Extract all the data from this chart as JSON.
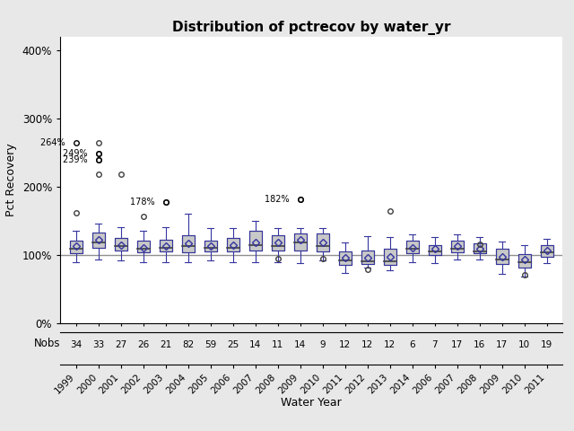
{
  "title": "Distribution of pctrecov by water_yr",
  "xlabel": "Water Year",
  "ylabel": "Pct Recovery",
  "ylabel_nobs": "Nobs",
  "background_color": "#e8e8e8",
  "plot_bg_color": "#ffffff",
  "years": [
    "1999",
    "2000",
    "2001",
    "2002",
    "2003",
    "2004",
    "2005",
    "2006",
    "2007",
    "2008",
    "2009",
    "2010",
    "2011",
    "2012",
    "2013",
    "2014",
    "2006",
    "2007",
    "2008",
    "2009",
    "2010",
    "2011"
  ],
  "nobs": [
    34,
    33,
    27,
    26,
    21,
    82,
    59,
    25,
    14,
    11,
    14,
    9,
    12,
    12,
    12,
    6,
    7,
    17,
    16,
    17,
    10,
    19
  ],
  "box_data": {
    "whislo": [
      90,
      94,
      92,
      90,
      90,
      90,
      92,
      90,
      90,
      90,
      88,
      92,
      74,
      82,
      78,
      90,
      88,
      94,
      93,
      73,
      68,
      88
    ],
    "q1": [
      103,
      110,
      107,
      104,
      105,
      104,
      105,
      105,
      106,
      106,
      107,
      105,
      86,
      87,
      86,
      102,
      100,
      104,
      102,
      87,
      82,
      97
    ],
    "med": [
      109,
      118,
      113,
      109,
      110,
      113,
      111,
      111,
      114,
      113,
      119,
      113,
      92,
      91,
      91,
      109,
      105,
      109,
      105,
      93,
      90,
      104
    ],
    "mean": [
      113,
      123,
      115,
      111,
      113,
      117,
      113,
      115,
      119,
      119,
      123,
      119,
      96,
      96,
      97,
      111,
      109,
      113,
      109,
      97,
      93,
      106
    ],
    "q3": [
      121,
      133,
      125,
      121,
      123,
      129,
      121,
      125,
      135,
      129,
      131,
      131,
      105,
      107,
      109,
      121,
      115,
      121,
      117,
      109,
      101,
      115
    ],
    "whishi": [
      136,
      146,
      141,
      136,
      141,
      161,
      140,
      140,
      150,
      140,
      140,
      140,
      118,
      128,
      126,
      130,
      126,
      130,
      126,
      120,
      115,
      124
    ],
    "fliers_hi": [
      162,
      264,
      219,
      157,
      178,
      0,
      0,
      0,
      0,
      0,
      182,
      0,
      0,
      0,
      165,
      0,
      0,
      0,
      116,
      0,
      0,
      0
    ],
    "fliers_lo": [
      0,
      249,
      0,
      0,
      0,
      0,
      0,
      0,
      0,
      95,
      0,
      95,
      0,
      79,
      0,
      0,
      0,
      0,
      0,
      0,
      71,
      0
    ],
    "fliers_hi2": [
      0,
      240,
      0,
      0,
      0,
      0,
      0,
      0,
      0,
      0,
      0,
      0,
      0,
      0,
      0,
      0,
      0,
      0,
      0,
      0,
      0,
      0
    ],
    "fliers_lo2": [
      0,
      218,
      0,
      0,
      0,
      0,
      0,
      0,
      0,
      0,
      0,
      0,
      0,
      0,
      0,
      0,
      0,
      0,
      0,
      0,
      0,
      0
    ]
  },
  "ref_line": 100,
  "box_facecolor": "#c8c8c8",
  "box_edgecolor": "#404040",
  "whisker_color": "#3535a0",
  "mean_marker_color": "#3535a0",
  "flier_color": "#404040",
  "ylim": [
    0,
    420
  ],
  "yticks": [
    0,
    100,
    200,
    300,
    400
  ],
  "ytick_labels": [
    "0%",
    "100%",
    "200%",
    "300%",
    "400%"
  ]
}
